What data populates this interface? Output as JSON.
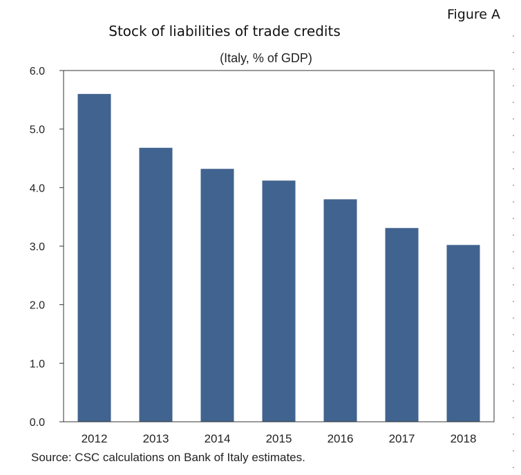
{
  "figure_label": "Figure A",
  "chart_data": {
    "type": "bar",
    "title": "Stock of liabilities of trade credits",
    "subtitle": "(Italy, % of GDP)",
    "categories": [
      "2012",
      "2013",
      "2014",
      "2015",
      "2016",
      "2017",
      "2018"
    ],
    "values": [
      5.6,
      4.68,
      4.32,
      4.12,
      3.8,
      3.31,
      3.02
    ],
    "ylim": [
      0,
      6
    ],
    "yticks": [
      "0.0",
      "1.0",
      "2.0",
      "3.0",
      "4.0",
      "5.0",
      "6.0"
    ],
    "xlabel": "",
    "ylabel": "",
    "grid": false,
    "bar_color": "#41638f",
    "source": "Source: CSC calculations on Bank of Italy estimates."
  }
}
